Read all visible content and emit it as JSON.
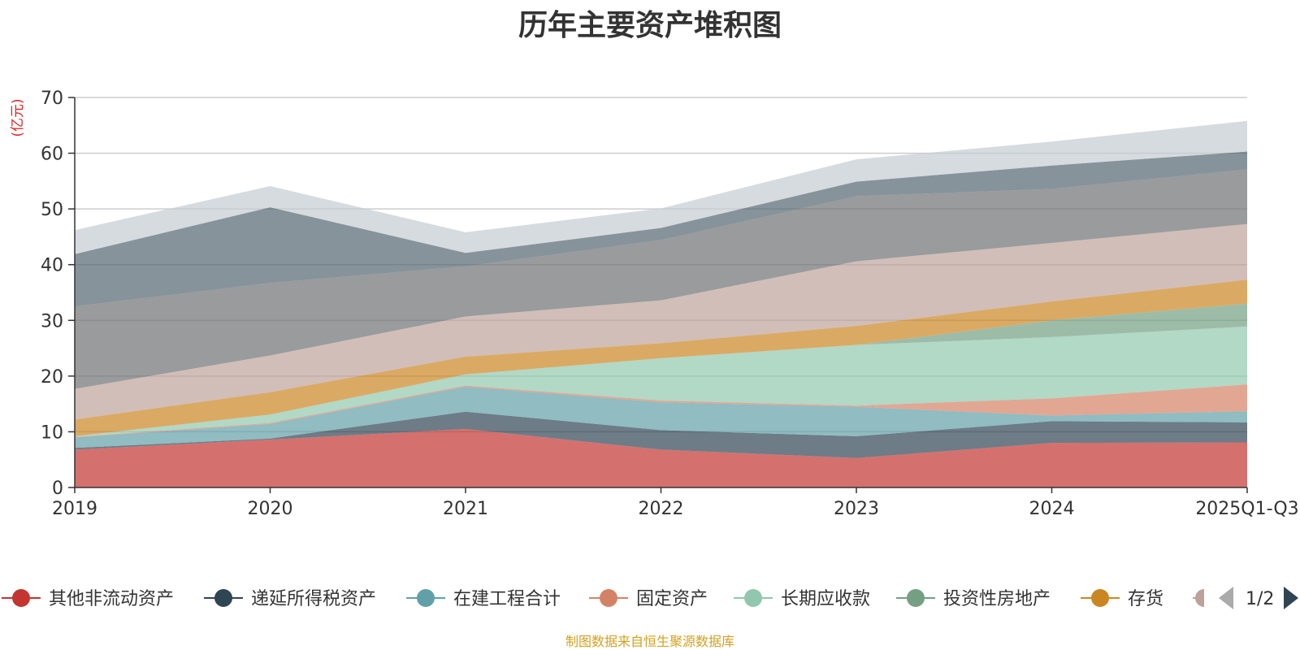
{
  "chart_data": {
    "type": "area",
    "stacked": true,
    "title": "历年主要资产堆积图",
    "ylabel": "(亿元)",
    "xlabel": "",
    "ylim": [
      0,
      70
    ],
    "yticks": [
      0,
      10,
      20,
      30,
      40,
      50,
      60,
      70
    ],
    "categories": [
      "2019",
      "2020",
      "2021",
      "2022",
      "2023",
      "2024",
      "2025Q1-Q3"
    ],
    "series": [
      {
        "name": "其他非流动资产",
        "color": "#c23531",
        "values": [
          6.8,
          8.6,
          10.5,
          6.8,
          5.3,
          8.0,
          8.1
        ]
      },
      {
        "name": "递延所得税资产",
        "color": "#2f4554",
        "values": [
          0.3,
          0.2,
          3.1,
          3.5,
          3.9,
          3.9,
          3.6
        ]
      },
      {
        "name": "在建工程合计",
        "color": "#61a0a8",
        "values": [
          1.9,
          2.6,
          4.5,
          5.0,
          5.3,
          1.0,
          2.0
        ]
      },
      {
        "name": "固定资产",
        "color": "#d48265",
        "values": [
          0.1,
          0.2,
          0.2,
          0.3,
          0.2,
          3.1,
          4.8
        ]
      },
      {
        "name": "长期应收款",
        "color": "#91c7ae",
        "values": [
          0.1,
          1.5,
          2.0,
          7.6,
          10.9,
          11.0,
          10.4
        ]
      },
      {
        "name": "投资性房地产",
        "color": "#749f83",
        "values": [
          0.0,
          0.0,
          0.0,
          0.0,
          0.0,
          3.0,
          4.1
        ]
      },
      {
        "name": "存货",
        "color": "#ca8622",
        "values": [
          3.0,
          4.0,
          3.2,
          2.7,
          3.4,
          3.4,
          4.3
        ]
      },
      {
        "name": "",
        "color": "#bda29a",
        "values": [
          5.5,
          6.6,
          7.2,
          7.7,
          11.6,
          10.5,
          10.0
        ]
      },
      {
        "name": "",
        "color": "#6e7074",
        "values": [
          14.8,
          13.0,
          9.0,
          10.8,
          11.7,
          9.7,
          9.8
        ]
      },
      {
        "name": "",
        "color": "#546570",
        "values": [
          9.4,
          13.6,
          2.4,
          2.2,
          2.6,
          4.2,
          3.2
        ]
      },
      {
        "name": "",
        "color": "#c4ccd3",
        "values": [
          4.3,
          3.8,
          3.7,
          3.5,
          4.0,
          4.3,
          5.5
        ]
      }
    ],
    "legend": {
      "items": [
        "其他非流动资产",
        "递延所得税资产",
        "在建工程合计",
        "固定资产",
        "长期应收款",
        "投资性房地产",
        "存货"
      ],
      "page": "1/2"
    },
    "footer": "制图数据来自恒生聚源数据库"
  }
}
